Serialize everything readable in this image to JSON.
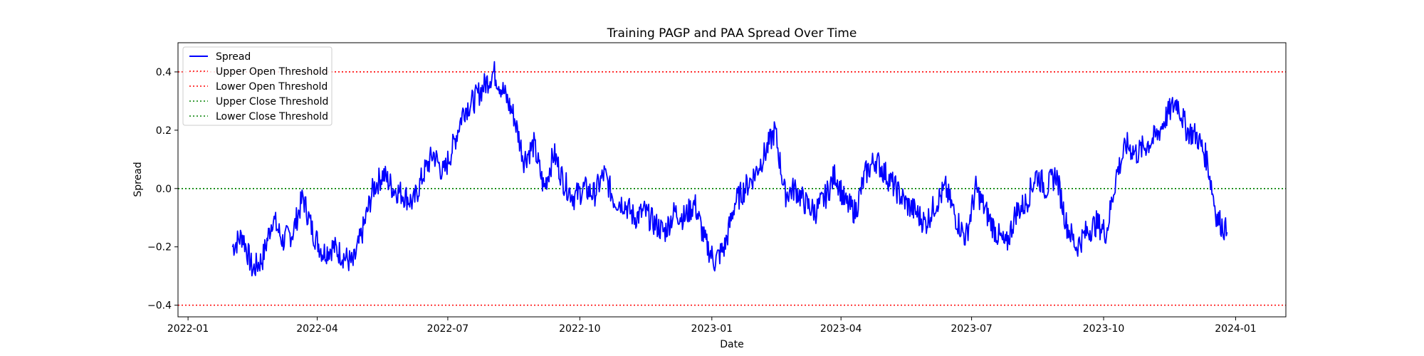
{
  "chart_data": {
    "type": "line",
    "title": "Training PAGP and PAA Spread Over Time",
    "xlabel": "Date",
    "ylabel": "Spread",
    "xlim": [
      "2021-12-25",
      "2024-02-05"
    ],
    "ylim": [
      -0.44,
      0.5
    ],
    "x_ticks": [
      "2022-01",
      "2022-04",
      "2022-07",
      "2022-10",
      "2023-01",
      "2023-04",
      "2023-07",
      "2023-10",
      "2024-01"
    ],
    "y_ticks": [
      -0.4,
      -0.2,
      0.0,
      0.2,
      0.4
    ],
    "y_tick_labels": [
      "−0.4",
      "−0.2",
      "0.0",
      "0.2",
      "0.4"
    ],
    "grid": false,
    "legend_position": "upper-left",
    "series": [
      {
        "name": "Spread",
        "color": "#0000ff",
        "style": "solid",
        "x": [
          "2022-02-01",
          "2022-02-08",
          "2022-02-15",
          "2022-02-22",
          "2022-03-01",
          "2022-03-08",
          "2022-03-15",
          "2022-03-22",
          "2022-03-29",
          "2022-04-05",
          "2022-04-12",
          "2022-04-19",
          "2022-04-26",
          "2022-05-03",
          "2022-05-10",
          "2022-05-17",
          "2022-05-24",
          "2022-05-31",
          "2022-06-07",
          "2022-06-14",
          "2022-06-21",
          "2022-06-28",
          "2022-07-05",
          "2022-07-12",
          "2022-07-19",
          "2022-07-26",
          "2022-08-02",
          "2022-08-09",
          "2022-08-16",
          "2022-08-23",
          "2022-08-30",
          "2022-09-06",
          "2022-09-13",
          "2022-09-20",
          "2022-09-27",
          "2022-10-04",
          "2022-10-11",
          "2022-10-18",
          "2022-10-25",
          "2022-11-01",
          "2022-11-08",
          "2022-11-15",
          "2022-11-22",
          "2022-11-29",
          "2022-12-06",
          "2022-12-13",
          "2022-12-20",
          "2022-12-27",
          "2023-01-03",
          "2023-01-10",
          "2023-01-17",
          "2023-01-24",
          "2023-01-31",
          "2023-02-07",
          "2023-02-14",
          "2023-02-21",
          "2023-02-28",
          "2023-03-07",
          "2023-03-14",
          "2023-03-21",
          "2023-03-28",
          "2023-04-04",
          "2023-04-11",
          "2023-04-18",
          "2023-04-25",
          "2023-05-02",
          "2023-05-09",
          "2023-05-16",
          "2023-05-23",
          "2023-05-30",
          "2023-06-06",
          "2023-06-13",
          "2023-06-20",
          "2023-06-27",
          "2023-07-04",
          "2023-07-11",
          "2023-07-18",
          "2023-07-25",
          "2023-08-01",
          "2023-08-08",
          "2023-08-15",
          "2023-08-22",
          "2023-08-29",
          "2023-09-05",
          "2023-09-12",
          "2023-09-19",
          "2023-09-26",
          "2023-10-03",
          "2023-10-10",
          "2023-10-17",
          "2023-10-24",
          "2023-10-31",
          "2023-11-07",
          "2023-11-14",
          "2023-11-21",
          "2023-11-28",
          "2023-12-05",
          "2023-12-12",
          "2023-12-19",
          "2023-12-26"
        ],
        "y": [
          -0.2,
          -0.16,
          -0.28,
          -0.24,
          -0.1,
          -0.18,
          -0.15,
          -0.03,
          -0.15,
          -0.22,
          -0.2,
          -0.23,
          -0.26,
          -0.14,
          0.0,
          0.05,
          0.0,
          -0.02,
          -0.05,
          0.05,
          0.12,
          0.05,
          0.15,
          0.27,
          0.3,
          0.35,
          0.4,
          0.33,
          0.25,
          0.1,
          0.15,
          0.0,
          0.12,
          0.02,
          -0.03,
          0.0,
          -0.02,
          0.05,
          -0.04,
          -0.05,
          -0.1,
          -0.08,
          -0.12,
          -0.15,
          -0.08,
          -0.1,
          -0.05,
          -0.18,
          -0.25,
          -0.2,
          -0.05,
          0.0,
          0.05,
          0.12,
          0.2,
          -0.02,
          0.0,
          -0.05,
          -0.08,
          -0.03,
          0.05,
          -0.05,
          -0.08,
          0.05,
          0.1,
          0.05,
          0.0,
          -0.05,
          -0.08,
          -0.12,
          -0.05,
          0.0,
          -0.1,
          -0.17,
          0.0,
          -0.08,
          -0.15,
          -0.2,
          -0.08,
          -0.05,
          0.05,
          0.0,
          0.05,
          -0.12,
          -0.2,
          -0.15,
          -0.12,
          -0.15,
          0.05,
          0.15,
          0.12,
          0.15,
          0.18,
          0.25,
          0.3,
          0.2,
          0.18,
          0.1,
          -0.1,
          -0.15
        ]
      },
      {
        "name": "Upper Open Threshold",
        "color": "#ff0000",
        "style": "dotted",
        "y_const": 0.4
      },
      {
        "name": "Lower Open Threshold",
        "color": "#ff0000",
        "style": "dotted",
        "y_const": -0.4
      },
      {
        "name": "Upper Close Threshold",
        "color": "#008000",
        "style": "dotted",
        "y_const": 0.0
      },
      {
        "name": "Lower Close Threshold",
        "color": "#008000",
        "style": "dotted",
        "y_const": 0.0
      }
    ]
  }
}
